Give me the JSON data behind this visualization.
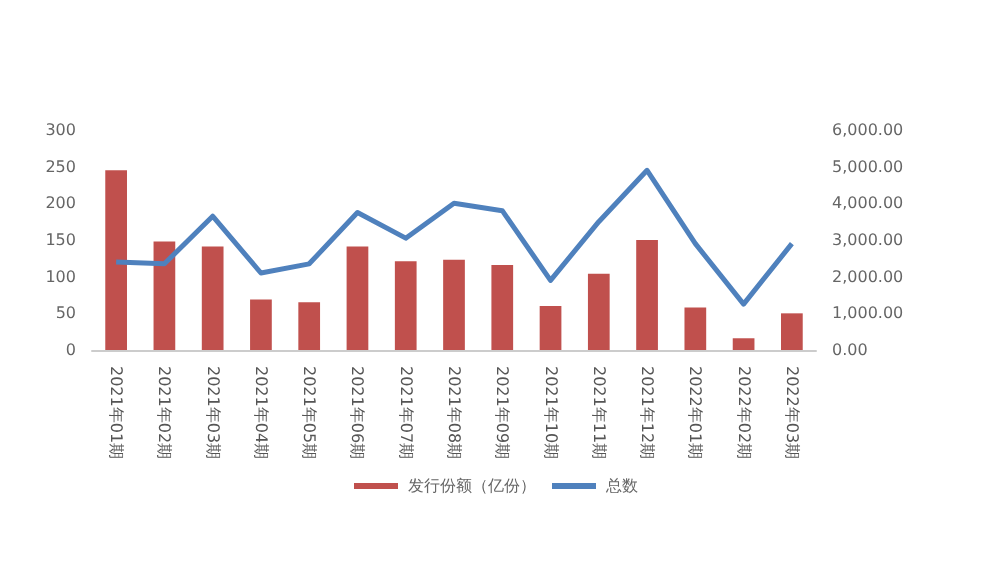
{
  "chart_data": {
    "type": "bar",
    "categories": [
      "2021年01期",
      "2021年02期",
      "2021年03期",
      "2021年04期",
      "2021年05期",
      "2021年06期",
      "2021年07期",
      "2021年08期",
      "2021年09期",
      "2021年10期",
      "2021年11期",
      "2021年12期",
      "2022年01期",
      "2022年02期",
      "2022年03期"
    ],
    "series": [
      {
        "name": "发行份额（亿份）",
        "color": "#c0504d",
        "values": [
          245,
          148,
          141,
          69,
          65,
          141,
          121,
          123,
          116,
          60,
          104,
          150,
          58,
          16,
          50
        ]
      },
      {
        "name": "总数",
        "type": "line",
        "axis": "y2",
        "color": "#4f81bd",
        "values": [
          2400,
          2350,
          3650,
          2100,
          2350,
          3750,
          3050,
          4000,
          3800,
          1900,
          3500,
          4900,
          2900,
          1250,
          2900
        ]
      }
    ],
    "ylim": [
      0,
      300
    ],
    "yticks": [
      0,
      50,
      100,
      150,
      200,
      250,
      300
    ],
    "y2lim": [
      0,
      6000
    ],
    "y2ticks": [
      {
        "value": 0,
        "label": "0.00"
      },
      {
        "value": 1000,
        "label": "1,000.00"
      },
      {
        "value": 2000,
        "label": "2,000.00"
      },
      {
        "value": 3000,
        "label": "3,000.00"
      },
      {
        "value": 4000,
        "label": "4,000.00"
      },
      {
        "value": 5000,
        "label": "5,000.00"
      },
      {
        "value": 6000,
        "label": "6,000.00"
      }
    ],
    "grid": false,
    "legend": "bottom",
    "marker": "none"
  }
}
